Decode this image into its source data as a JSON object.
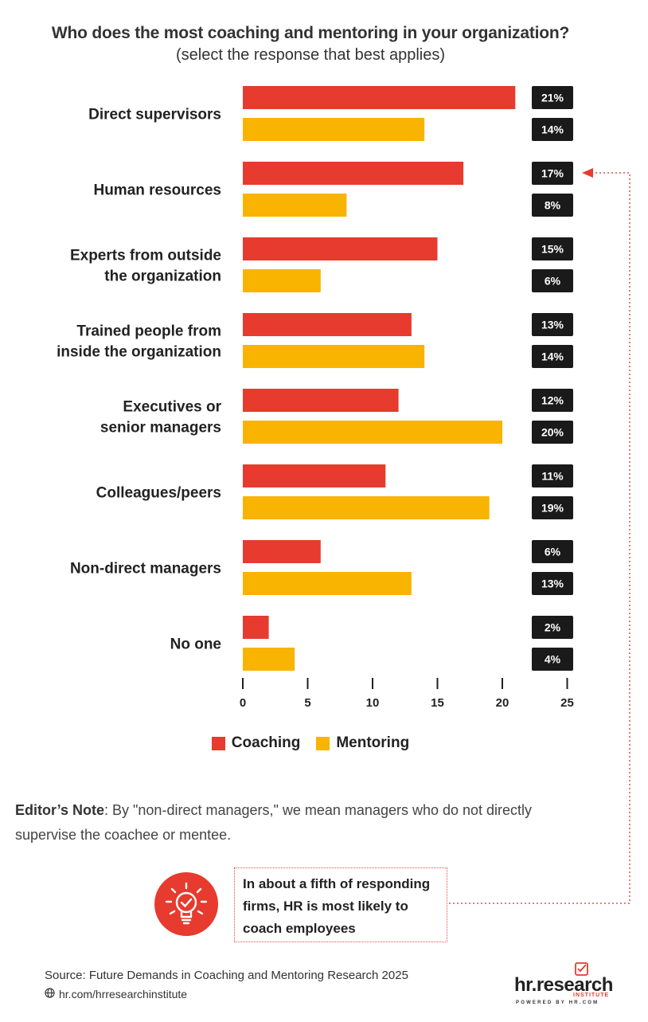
{
  "header": {
    "title": "Who does the most coaching and mentoring in your organization?",
    "subtitle": "(select the response that best applies)"
  },
  "colors": {
    "coaching": "#e63b2e",
    "mentoring": "#f8b400",
    "label_bg": "#1a1a1a",
    "callout_border": "#d9534f"
  },
  "chart_data": {
    "type": "bar",
    "orientation": "horizontal",
    "categories": [
      [
        "Direct supervisors"
      ],
      [
        "Human resources"
      ],
      [
        "Experts from outside",
        "the organization"
      ],
      [
        "Trained people from",
        "inside the organization"
      ],
      [
        "Executives or",
        "senior managers"
      ],
      [
        "Colleagues/peers"
      ],
      [
        "Non-direct managers"
      ],
      [
        "No one"
      ]
    ],
    "series": [
      {
        "name": "Coaching",
        "values": [
          21,
          17,
          15,
          13,
          12,
          11,
          6,
          2
        ]
      },
      {
        "name": "Mentoring",
        "values": [
          14,
          8,
          6,
          14,
          20,
          19,
          13,
          4
        ]
      }
    ],
    "value_labels": {
      "Coaching": [
        "21%",
        "17%",
        "15%",
        "13%",
        "12%",
        "11%",
        "6%",
        "2%"
      ],
      "Mentoring": [
        "14%",
        "8%",
        "6%",
        "14%",
        "20%",
        "19%",
        "13%",
        "4%"
      ]
    },
    "xlim": [
      0,
      25
    ],
    "xticks": [
      "0",
      "5",
      "10",
      "15",
      "20",
      "25"
    ],
    "grid": false,
    "legend": "bottom-center"
  },
  "legend": {
    "coaching_label": "Coaching",
    "mentoring_label": "Mentoring"
  },
  "note": {
    "lead": "Editor’s Note",
    "text": ": By \"non-direct managers,\" we mean managers who do not directly supervise the coachee or mentee."
  },
  "callout": {
    "text": "In about a fifth of responding firms, HR is most likely to coach employees",
    "icon": "lightbulb-check-icon"
  },
  "footer": {
    "source": "Source:  Future Demands in Coaching and Mentoring Research 2025",
    "url": "hr.com/hrresearchinstitute",
    "url_icon": "globe-icon"
  },
  "logo": {
    "main": "hr.research",
    "sub": "INSTITUTE",
    "powered": "POWERED BY HR.COM"
  }
}
